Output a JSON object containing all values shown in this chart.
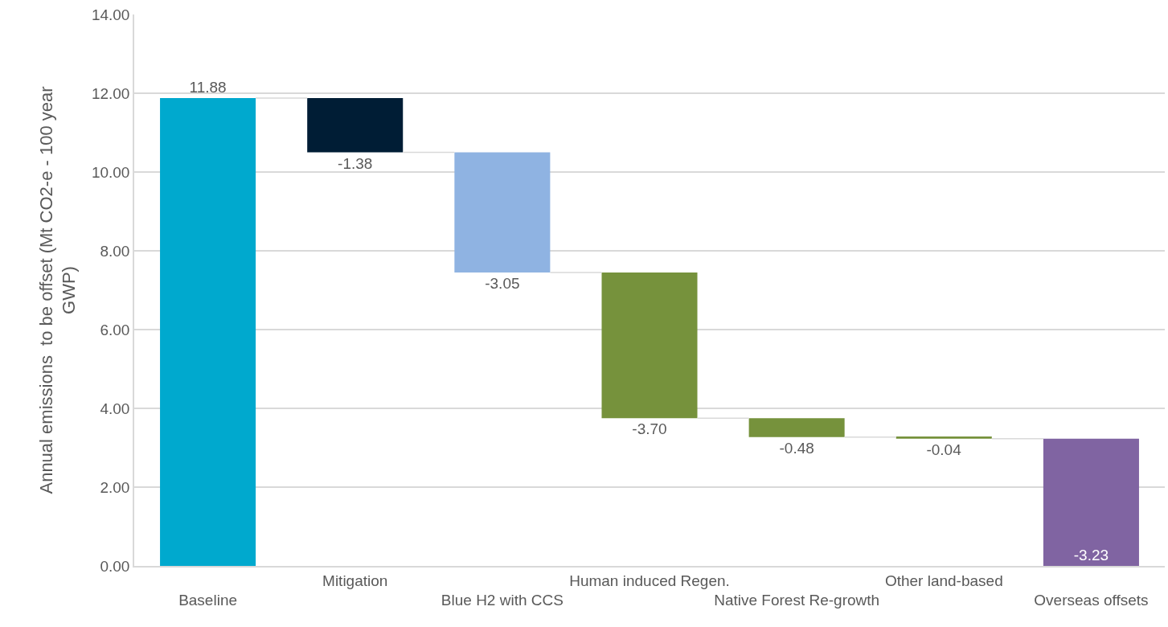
{
  "chart_data": {
    "type": "bar",
    "ylabel": "Annual emissions  to be offset (Mt CO2-e - 100 year GWP)",
    "categories": [
      "Baseline",
      "Mitigation",
      "Blue H2 with CCS",
      "Human induced Regen.",
      "Native Forest Re-growth",
      "Other land-based",
      "Overseas offsets"
    ],
    "values": [
      11.88,
      -1.38,
      -3.05,
      -3.7,
      -0.48,
      -0.04,
      -3.23
    ],
    "base": [
      0,
      11.88,
      10.5,
      7.45,
      3.75,
      3.27,
      3.23
    ],
    "colors": [
      "#00a9ce",
      "#001d35",
      "#8fb3e2",
      "#76923c",
      "#76923c",
      "#76923c",
      "#8064a2"
    ],
    "value_labels": [
      "11.88",
      "-1.38",
      "-3.05",
      "-3.70",
      "-0.48",
      "-0.04",
      "-3.23"
    ],
    "ylim": [
      0,
      14
    ],
    "yticks": [
      {
        "value": 0,
        "label": "0.00"
      },
      {
        "value": 2,
        "label": "2.00"
      },
      {
        "value": 4,
        "label": "4.00"
      },
      {
        "value": 6,
        "label": "6.00"
      },
      {
        "value": 8,
        "label": "8.00"
      },
      {
        "value": 10,
        "label": "10.00"
      },
      {
        "value": 12,
        "label": "12.00"
      },
      {
        "value": 14,
        "label": "14.00"
      }
    ],
    "grid": "y"
  }
}
